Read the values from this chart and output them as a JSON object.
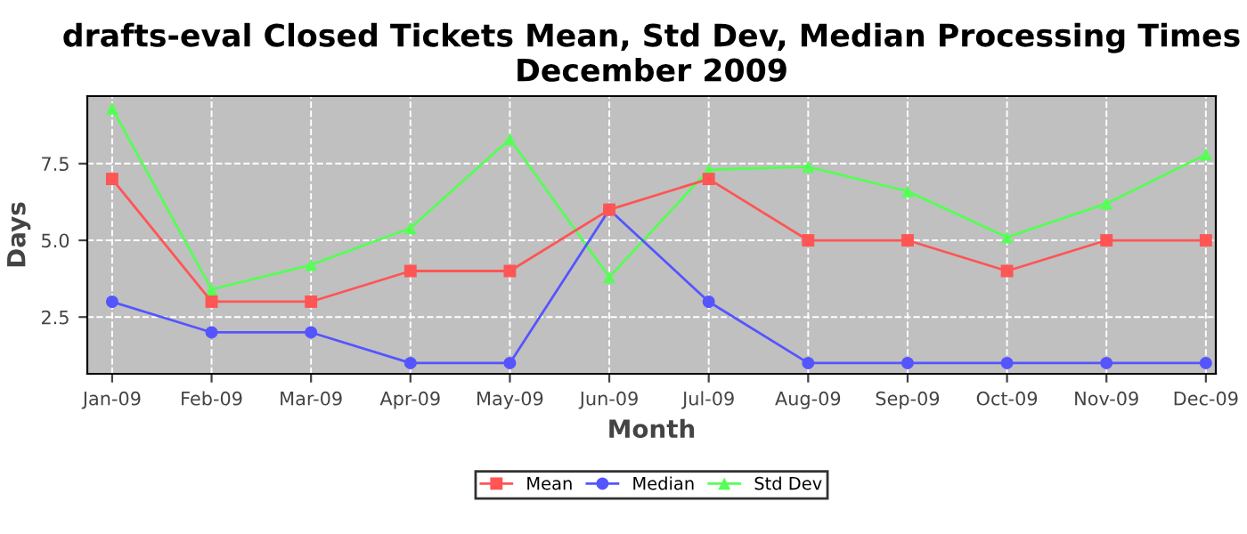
{
  "chart_data": {
    "type": "line",
    "title": "drafts-eval Closed Tickets Mean, Std Dev, Median Processing Times\nDecember 2009",
    "xlabel": "Month",
    "ylabel": "Days",
    "categories": [
      "Jan-09",
      "Feb-09",
      "Mar-09",
      "Apr-09",
      "May-09",
      "Jun-09",
      "Jul-09",
      "Aug-09",
      "Sep-09",
      "Oct-09",
      "Nov-09",
      "Dec-09"
    ],
    "series": [
      {
        "name": "Mean",
        "color": "#ff5555",
        "marker": "square",
        "values": [
          7,
          3,
          3,
          4,
          4,
          6,
          7,
          5,
          5,
          4,
          5,
          5
        ]
      },
      {
        "name": "Median",
        "color": "#5555ff",
        "marker": "circle",
        "values": [
          3,
          2,
          2,
          1,
          1,
          6,
          3,
          1,
          1,
          1,
          1,
          1
        ]
      },
      {
        "name": "Std Dev",
        "color": "#55ff55",
        "marker": "triangle",
        "values": [
          9.3,
          3.4,
          4.2,
          5.4,
          8.3,
          3.8,
          7.3,
          7.4,
          6.6,
          5.1,
          6.2,
          7.8
        ]
      }
    ],
    "ylim": [
      0.65,
      9.7
    ],
    "yticks": [
      2.5,
      {
        "value": 5,
        "label": "5.0"
      },
      7.5
    ],
    "grid": true,
    "legend": "bottom"
  }
}
